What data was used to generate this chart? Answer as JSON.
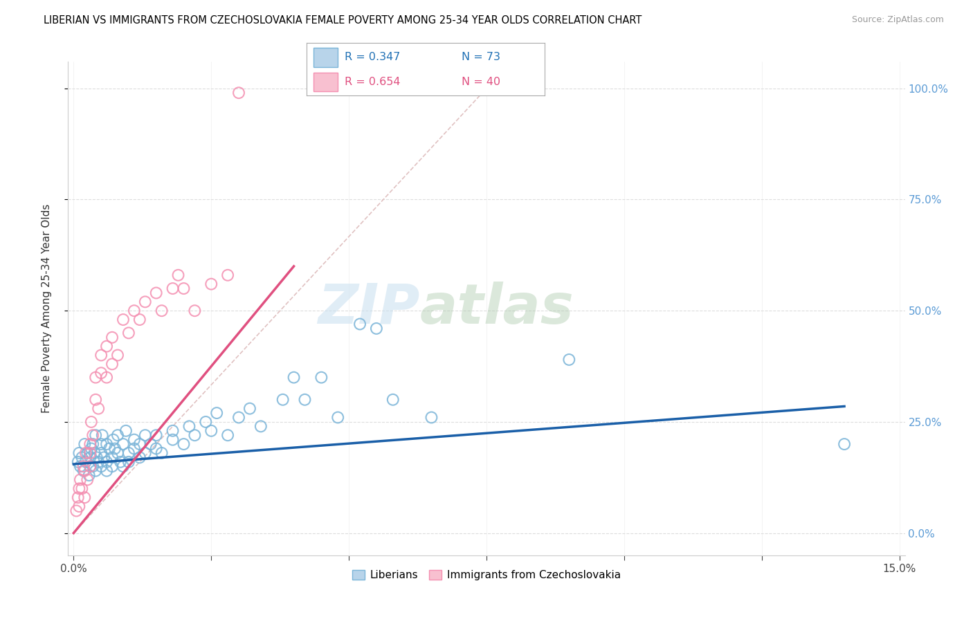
{
  "title": "LIBERIAN VS IMMIGRANTS FROM CZECHOSLOVAKIA FEMALE POVERTY AMONG 25-34 YEAR OLDS CORRELATION CHART",
  "source": "Source: ZipAtlas.com",
  "ylabel": "Female Poverty Among 25-34 Year Olds",
  "xlim": [
    -0.001,
    0.151
  ],
  "ylim": [
    -0.05,
    1.06
  ],
  "yticks": [
    0.0,
    0.25,
    0.5,
    0.75,
    1.0
  ],
  "xticks": [
    0.0,
    0.025,
    0.05,
    0.075,
    0.1,
    0.125,
    0.15
  ],
  "watermark_zip": "ZIP",
  "watermark_atlas": "atlas",
  "liberians_color": "#7ab4d8",
  "czech_color": "#f48fb1",
  "liberian_line_color": "#1a5fa8",
  "czech_line_color": "#e05080",
  "diagonal_color": "#ddbbbb",
  "liberians_x": [
    0.0008,
    0.001,
    0.0012,
    0.0015,
    0.0018,
    0.002,
    0.0022,
    0.0025,
    0.0028,
    0.003,
    0.003,
    0.0032,
    0.0035,
    0.0035,
    0.0038,
    0.004,
    0.004,
    0.0042,
    0.0045,
    0.005,
    0.005,
    0.005,
    0.0052,
    0.0055,
    0.006,
    0.006,
    0.006,
    0.0065,
    0.007,
    0.007,
    0.0072,
    0.0075,
    0.008,
    0.008,
    0.0085,
    0.009,
    0.009,
    0.0095,
    0.01,
    0.01,
    0.011,
    0.011,
    0.012,
    0.012,
    0.013,
    0.013,
    0.014,
    0.015,
    0.015,
    0.016,
    0.018,
    0.018,
    0.02,
    0.021,
    0.022,
    0.024,
    0.025,
    0.026,
    0.028,
    0.03,
    0.032,
    0.034,
    0.038,
    0.04,
    0.042,
    0.045,
    0.048,
    0.052,
    0.055,
    0.058,
    0.065,
    0.09,
    0.14
  ],
  "liberians_y": [
    0.16,
    0.18,
    0.15,
    0.17,
    0.14,
    0.2,
    0.16,
    0.18,
    0.13,
    0.17,
    0.15,
    0.19,
    0.15,
    0.2,
    0.18,
    0.14,
    0.22,
    0.17,
    0.16,
    0.18,
    0.2,
    0.15,
    0.22,
    0.17,
    0.16,
    0.2,
    0.14,
    0.19,
    0.17,
    0.15,
    0.21,
    0.19,
    0.18,
    0.22,
    0.16,
    0.2,
    0.15,
    0.23,
    0.18,
    0.16,
    0.21,
    0.19,
    0.2,
    0.17,
    0.22,
    0.18,
    0.2,
    0.19,
    0.22,
    0.18,
    0.23,
    0.21,
    0.2,
    0.24,
    0.22,
    0.25,
    0.23,
    0.27,
    0.22,
    0.26,
    0.28,
    0.24,
    0.3,
    0.35,
    0.3,
    0.35,
    0.26,
    0.47,
    0.46,
    0.3,
    0.26,
    0.39,
    0.2
  ],
  "czech_x": [
    0.0005,
    0.0008,
    0.001,
    0.001,
    0.0012,
    0.0015,
    0.0018,
    0.002,
    0.002,
    0.0022,
    0.0025,
    0.003,
    0.003,
    0.003,
    0.0032,
    0.0035,
    0.004,
    0.004,
    0.0045,
    0.005,
    0.005,
    0.006,
    0.006,
    0.007,
    0.007,
    0.008,
    0.009,
    0.01,
    0.011,
    0.012,
    0.013,
    0.015,
    0.016,
    0.018,
    0.019,
    0.02,
    0.022,
    0.025,
    0.028,
    0.03
  ],
  "czech_y": [
    0.05,
    0.08,
    0.1,
    0.06,
    0.12,
    0.1,
    0.15,
    0.08,
    0.14,
    0.18,
    0.12,
    0.15,
    0.2,
    0.18,
    0.25,
    0.22,
    0.3,
    0.35,
    0.28,
    0.36,
    0.4,
    0.35,
    0.42,
    0.38,
    0.44,
    0.4,
    0.48,
    0.45,
    0.5,
    0.48,
    0.52,
    0.54,
    0.5,
    0.55,
    0.58,
    0.55,
    0.5,
    0.56,
    0.58,
    0.99
  ]
}
